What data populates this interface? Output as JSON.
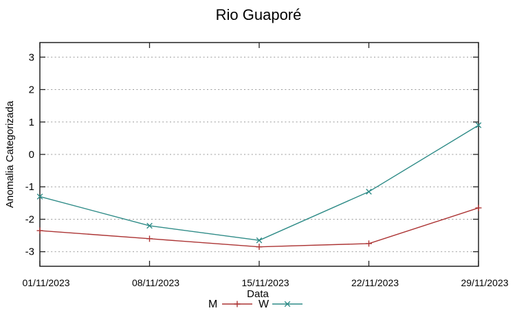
{
  "chart_data": {
    "type": "line",
    "title": "Rio Guaporé",
    "xlabel": "Data",
    "ylabel": "Anomalia Categorizada",
    "categories": [
      "01/11/2023",
      "08/11/2023",
      "15/11/2023",
      "22/11/2023",
      "29/11/2023"
    ],
    "series": [
      {
        "name": "M",
        "marker": "plus",
        "color": "#ac3434",
        "values": [
          -2.35,
          -2.6,
          -2.85,
          -2.75,
          -1.65
        ]
      },
      {
        "name": "W",
        "marker": "cross",
        "color": "#2e8b87",
        "values": [
          -1.3,
          -2.2,
          -2.65,
          -1.15,
          0.9
        ]
      }
    ],
    "yticks": [
      3,
      2,
      1,
      0,
      -1,
      -2,
      -3
    ],
    "ylim": [
      -3.45,
      3.45
    ],
    "grid": "horizontal-dashed",
    "legend_position": "bottom-center-below-xlabel",
    "axis_color": "#222222",
    "grid_color": "#999999",
    "text_color": "#000000",
    "background": "#ffffff"
  }
}
